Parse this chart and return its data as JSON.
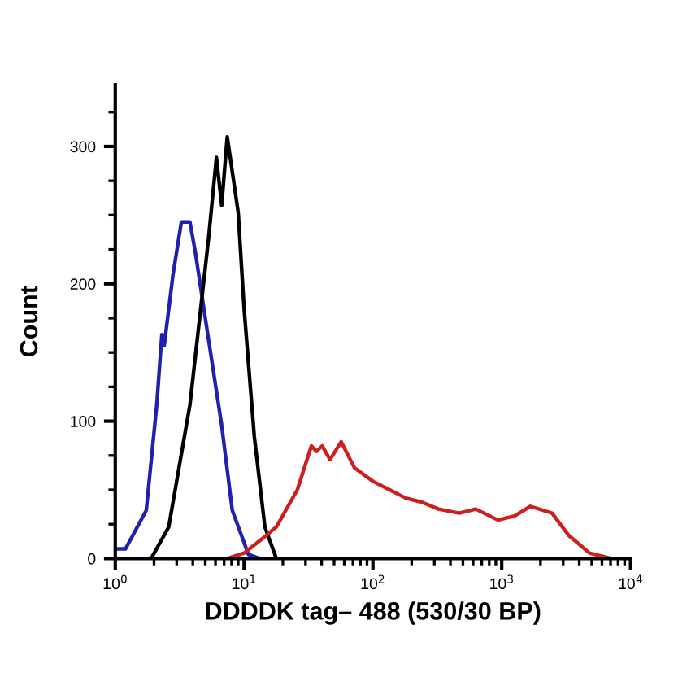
{
  "chart_data": {
    "type": "line",
    "xlabel": "DDDDK tag– 488 (530/30 BP)",
    "ylabel": "Count",
    "log": "x",
    "xlim": [
      1,
      10000
    ],
    "ylim": [
      0,
      345
    ],
    "xticks": [
      {
        "value": 1,
        "label": "10$^{0}$"
      },
      {
        "value": 10,
        "label": "10$^{1}$"
      },
      {
        "value": 100,
        "label": "10$^{2}$"
      },
      {
        "value": 1000,
        "label": "10$^{3}$"
      },
      {
        "value": 10000,
        "label": "10$^{4}$"
      }
    ],
    "yticks": [
      0,
      100,
      200,
      300
    ],
    "grid": false,
    "series": [
      {
        "color": "#2020b0",
        "x": [
          1,
          1.2,
          1.74,
          2.1,
          2.3,
          2.4,
          2.8,
          3.26,
          3.8,
          4.2,
          5.0,
          6.7,
          8.1,
          10.8,
          13.2
        ],
        "values": [
          7,
          7,
          35,
          112,
          163,
          155,
          206,
          245,
          245,
          222,
          175,
          97,
          35,
          3,
          0
        ]
      },
      {
        "color": "#000000",
        "x": [
          1.9,
          2.6,
          3.8,
          5.3,
          6.1,
          6.7,
          7.4,
          9.0,
          10,
          12,
          14.5,
          17.8
        ],
        "values": [
          0,
          23,
          112,
          233,
          292,
          257,
          307,
          252,
          182,
          89,
          23,
          0
        ]
      },
      {
        "color": "#cc2020",
        "x": [
          1,
          7.4,
          10,
          14.5,
          17.8,
          25.9,
          33.3,
          36.5,
          40.4,
          46.5,
          56.7,
          72,
          101,
          135,
          180,
          241,
          323,
          468,
          629,
          935,
          1256,
          1670,
          2460,
          3300,
          4800,
          7100,
          10000
        ],
        "values": [
          0,
          0,
          4,
          16,
          23,
          50,
          82,
          78,
          82,
          72,
          85,
          66,
          56,
          50,
          44,
          41,
          36,
          33,
          36,
          28,
          31,
          38,
          33,
          17,
          4,
          0,
          0
        ]
      }
    ]
  }
}
